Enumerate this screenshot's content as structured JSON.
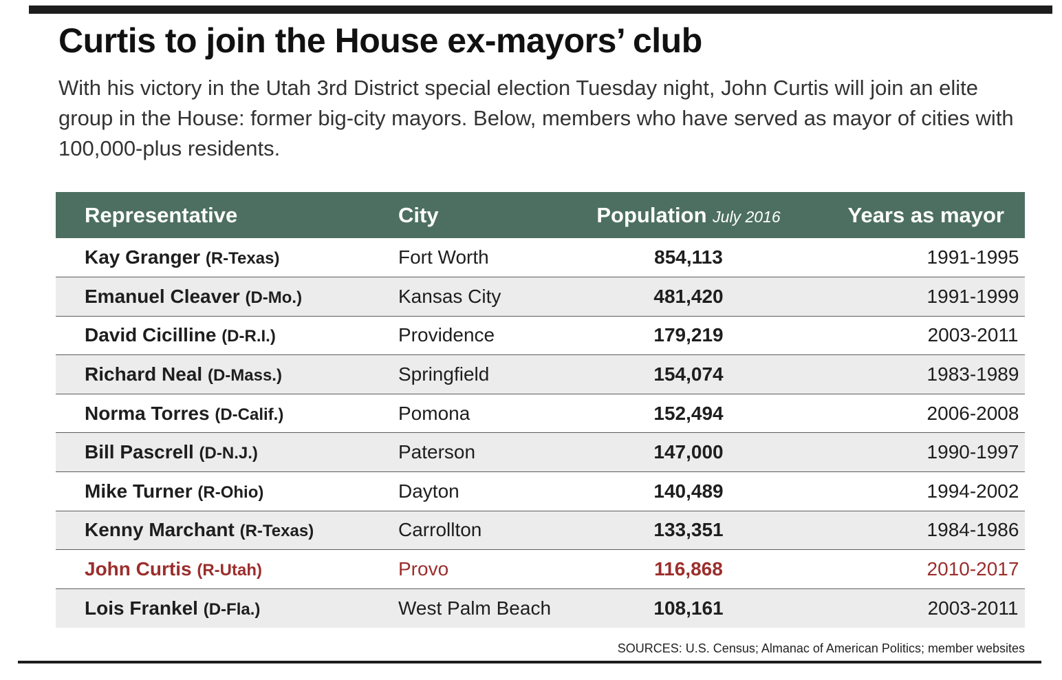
{
  "title": "Curtis to join the House ex-mayors’ club",
  "intro": "With his victory in the Utah 3rd District special election Tuesday night, John Curtis will join an elite group in the House: former big-city mayors. Below, members who have served as mayor of cities with 100,000-plus residents.",
  "table": {
    "headers": {
      "representative": "Representative",
      "city": "City",
      "population": "Population",
      "population_note": "July 2016",
      "years": "Years as mayor"
    },
    "rows": [
      {
        "name": "Kay Granger",
        "party": "(R-Texas)",
        "city": "Fort Worth",
        "population": "854,113",
        "years": "1991-1995"
      },
      {
        "name": "Emanuel Cleaver",
        "party": "(D-Mo.)",
        "city": "Kansas City",
        "population": "481,420",
        "years": "1991-1999"
      },
      {
        "name": "David Cicilline",
        "party": "(D-R.I.)",
        "city": "Providence",
        "population": "179,219",
        "years": "2003-2011"
      },
      {
        "name": "Richard Neal",
        "party": "(D-Mass.)",
        "city": "Springfield",
        "population": "154,074",
        "years": "1983-1989"
      },
      {
        "name": "Norma Torres",
        "party": "(D-Calif.)",
        "city": "Pomona",
        "population": "152,494",
        "years": "2006-2008"
      },
      {
        "name": "Bill Pascrell",
        "party": "(D-N.J.)",
        "city": "Paterson",
        "population": "147,000",
        "years": "1990-1997"
      },
      {
        "name": "Mike Turner",
        "party": "(R-Ohio)",
        "city": "Dayton",
        "population": "140,489",
        "years": "1994-2002"
      },
      {
        "name": "Kenny Marchant",
        "party": "(R-Texas)",
        "city": "Carrollton",
        "population": "133,351",
        "years": "1984-1986"
      },
      {
        "name": "John Curtis",
        "party": "(R-Utah)",
        "city": "Provo",
        "population": "116,868",
        "years": "2010-2017"
      },
      {
        "name": "Lois Frankel",
        "party": "(D-Fla.)",
        "city": "West Palm Beach",
        "population": "108,161",
        "years": "2003-2011"
      }
    ]
  },
  "sources": "SOURCES: U.S. Census; Almanac of American Politics; member websites",
  "colors": {
    "header_bg": "#4d6f62",
    "highlight": "#9b2e2c",
    "alt_row": "#ececec"
  }
}
